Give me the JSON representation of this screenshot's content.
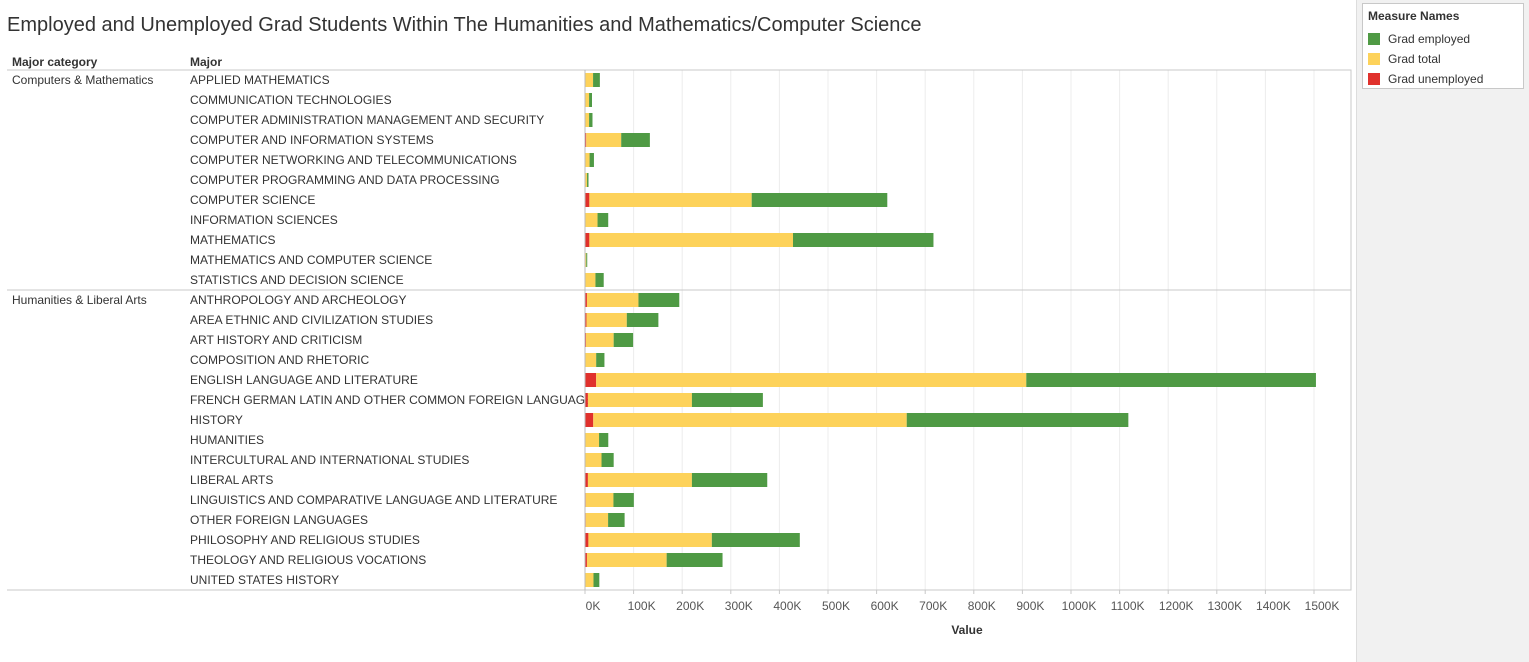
{
  "title": "Employed and Unemployed Grad Students Within The Humanities and Mathematics/Computer Science",
  "legend": {
    "title": "Measure Names",
    "items": [
      {
        "label": "Grad employed",
        "color": "#4f9a44"
      },
      {
        "label": "Grad total",
        "color": "#fdd25a"
      },
      {
        "label": "Grad unemployed",
        "color": "#e0312c"
      }
    ]
  },
  "chart_data": {
    "type": "bar",
    "orientation": "horizontal",
    "stacked": true,
    "row_headers": [
      "Major category",
      "Major"
    ],
    "xlabel": "Value",
    "xlim": [
      0,
      1550000
    ],
    "x_ticks": [
      {
        "value": 0,
        "label": "0K"
      },
      {
        "value": 100000,
        "label": "100K"
      },
      {
        "value": 200000,
        "label": "200K"
      },
      {
        "value": 300000,
        "label": "300K"
      },
      {
        "value": 400000,
        "label": "400K"
      },
      {
        "value": 500000,
        "label": "500K"
      },
      {
        "value": 600000,
        "label": "600K"
      },
      {
        "value": 700000,
        "label": "700K"
      },
      {
        "value": 800000,
        "label": "800K"
      },
      {
        "value": 900000,
        "label": "900K"
      },
      {
        "value": 1000000,
        "label": "1000K"
      },
      {
        "value": 1100000,
        "label": "1100K"
      },
      {
        "value": 1200000,
        "label": "1200K"
      },
      {
        "value": 1300000,
        "label": "1300K"
      },
      {
        "value": 1400000,
        "label": "1400K"
      },
      {
        "value": 1500000,
        "label": "1500K"
      }
    ],
    "series_order": [
      "Grad unemployed",
      "Grad total",
      "Grad employed"
    ],
    "groups": [
      {
        "category": "Computers & Mathematics",
        "rows": [
          {
            "major": "APPLIED MATHEMATICS",
            "unemployed": 600,
            "total": 16000,
            "employed": 14000
          },
          {
            "major": "COMMUNICATION TECHNOLOGIES",
            "unemployed": 400,
            "total": 8000,
            "employed": 6000
          },
          {
            "major": "COMPUTER ADMINISTRATION MANAGEMENT AND SECURITY",
            "unemployed": 400,
            "total": 8000,
            "employed": 7000
          },
          {
            "major": "COMPUTER AND INFORMATION SYSTEMS",
            "unemployed": 2500,
            "total": 72000,
            "employed": 59000
          },
          {
            "major": "COMPUTER NETWORKING AND TELECOMMUNICATIONS",
            "unemployed": 400,
            "total": 9000,
            "employed": 9000
          },
          {
            "major": "COMPUTER PROGRAMMING AND DATA PROCESSING",
            "unemployed": 200,
            "total": 4000,
            "employed": 3000
          },
          {
            "major": "COMPUTER SCIENCE",
            "unemployed": 9000,
            "total": 334000,
            "employed": 279000
          },
          {
            "major": "INFORMATION SCIENCES",
            "unemployed": 800,
            "total": 25000,
            "employed": 22000
          },
          {
            "major": "MATHEMATICS",
            "unemployed": 9000,
            "total": 419000,
            "employed": 289000
          },
          {
            "major": "MATHEMATICS AND COMPUTER SCIENCE",
            "unemployed": 100,
            "total": 2500,
            "employed": 2000
          },
          {
            "major": "STATISTICS AND DECISION SCIENCE",
            "unemployed": 500,
            "total": 21000,
            "employed": 17000
          }
        ]
      },
      {
        "category": "Humanities & Liberal Arts",
        "rows": [
          {
            "major": "ANTHROPOLOGY AND ARCHEOLOGY",
            "unemployed": 4000,
            "total": 106000,
            "employed": 84000
          },
          {
            "major": "AREA ETHNIC AND CIVILIZATION STUDIES",
            "unemployed": 3000,
            "total": 83000,
            "employed": 65000
          },
          {
            "major": "ART HISTORY AND CRITICISM",
            "unemployed": 2000,
            "total": 57000,
            "employed": 40000
          },
          {
            "major": "COMPOSITION AND RHETORIC",
            "unemployed": 1000,
            "total": 22000,
            "employed": 17000
          },
          {
            "major": "ENGLISH LANGUAGE AND LITERATURE",
            "unemployed": 23000,
            "total": 885000,
            "employed": 596000
          },
          {
            "major": "FRENCH GERMAN LATIN AND OTHER COMMON FOREIGN LANGUAGE ..",
            "unemployed": 6000,
            "total": 214000,
            "employed": 146000
          },
          {
            "major": "HISTORY",
            "unemployed": 17000,
            "total": 645000,
            "employed": 456000
          },
          {
            "major": "HUMANITIES",
            "unemployed": 900,
            "total": 28000,
            "employed": 19000
          },
          {
            "major": "INTERCULTURAL AND INTERNATIONAL STUDIES",
            "unemployed": 1000,
            "total": 33000,
            "employed": 25000
          },
          {
            "major": "LIBERAL ARTS",
            "unemployed": 6000,
            "total": 214000,
            "employed": 155000
          },
          {
            "major": "LINGUISTICS AND COMPARATIVE LANGUAGE AND LITERATURE",
            "unemployed": 1500,
            "total": 57000,
            "employed": 42000
          },
          {
            "major": "OTHER FOREIGN LANGUAGES",
            "unemployed": 1500,
            "total": 46000,
            "employed": 34000
          },
          {
            "major": "PHILOSOPHY AND RELIGIOUS STUDIES",
            "unemployed": 7000,
            "total": 254000,
            "employed": 181000
          },
          {
            "major": "THEOLOGY AND RELIGIOUS VOCATIONS",
            "unemployed": 4000,
            "total": 164000,
            "employed": 115000
          },
          {
            "major": "UNITED STATES HISTORY",
            "unemployed": 500,
            "total": 17000,
            "employed": 12000
          }
        ]
      }
    ]
  }
}
